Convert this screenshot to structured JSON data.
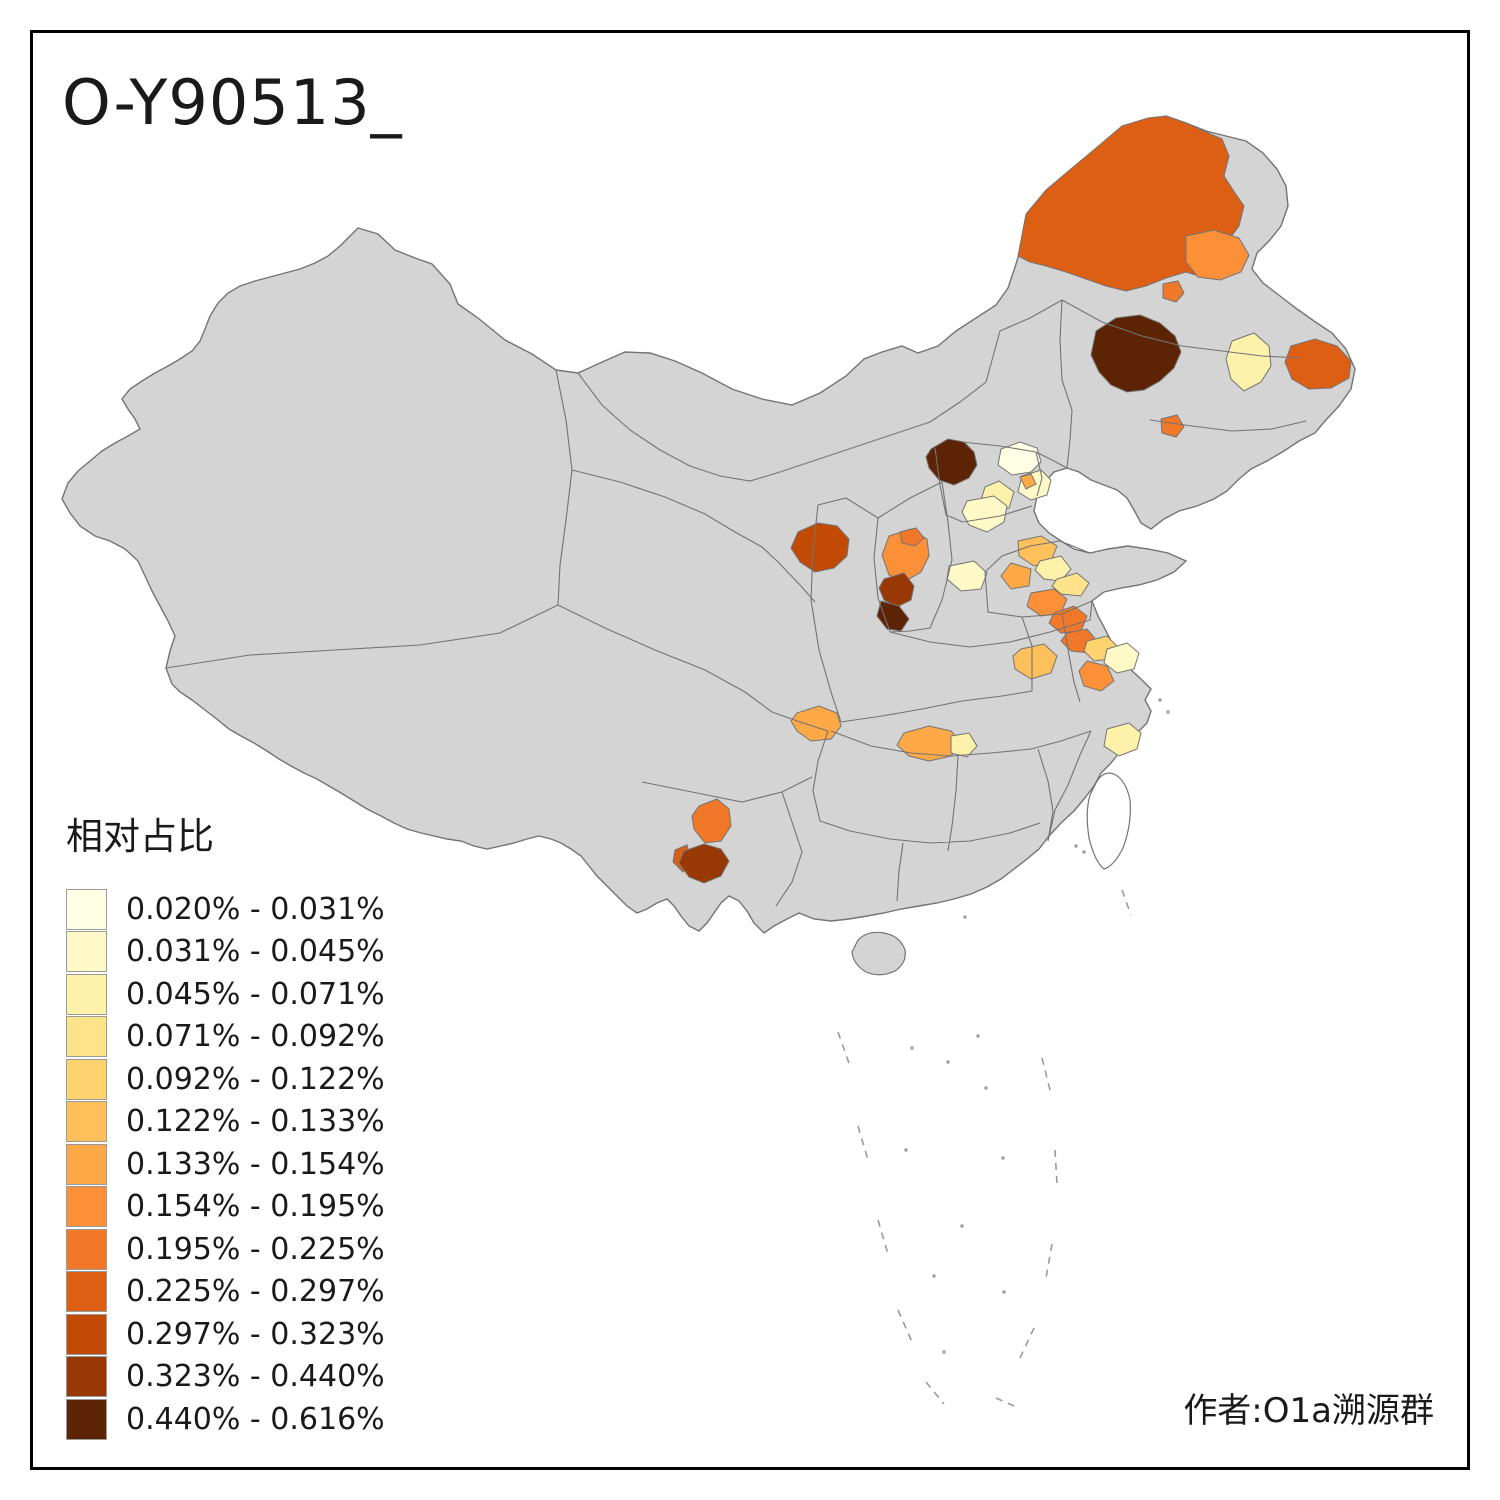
{
  "title": "O-Y90513_",
  "legend": {
    "title": "相对占比",
    "classes": [
      {
        "label": "0.020% - 0.031%",
        "color": "#FFFFE5"
      },
      {
        "label": "0.031% - 0.045%",
        "color": "#FFF9C8"
      },
      {
        "label": "0.045% - 0.071%",
        "color": "#FEF1A9"
      },
      {
        "label": "0.071% - 0.092%",
        "color": "#FEE38B"
      },
      {
        "label": "0.092% - 0.122%",
        "color": "#FED26E"
      },
      {
        "label": "0.122% - 0.133%",
        "color": "#FEC05A"
      },
      {
        "label": "0.133% - 0.154%",
        "color": "#FEA947"
      },
      {
        "label": "0.154% - 0.195%",
        "color": "#FB9038"
      },
      {
        "label": "0.195% - 0.225%",
        "color": "#F07828"
      },
      {
        "label": "0.225% - 0.297%",
        "color": "#DD5F14"
      },
      {
        "label": "0.297% - 0.323%",
        "color": "#C24A05"
      },
      {
        "label": "0.323% - 0.440%",
        "color": "#983804"
      },
      {
        "label": "0.440% - 0.616%",
        "color": "#5C2405"
      }
    ]
  },
  "attribution": "作者:O1a溯源群",
  "map": {
    "land_fill": "#D4D4D4",
    "boundary_color": "#737373",
    "water_fill": "#FFFFFF",
    "frame_color": "#000000"
  }
}
